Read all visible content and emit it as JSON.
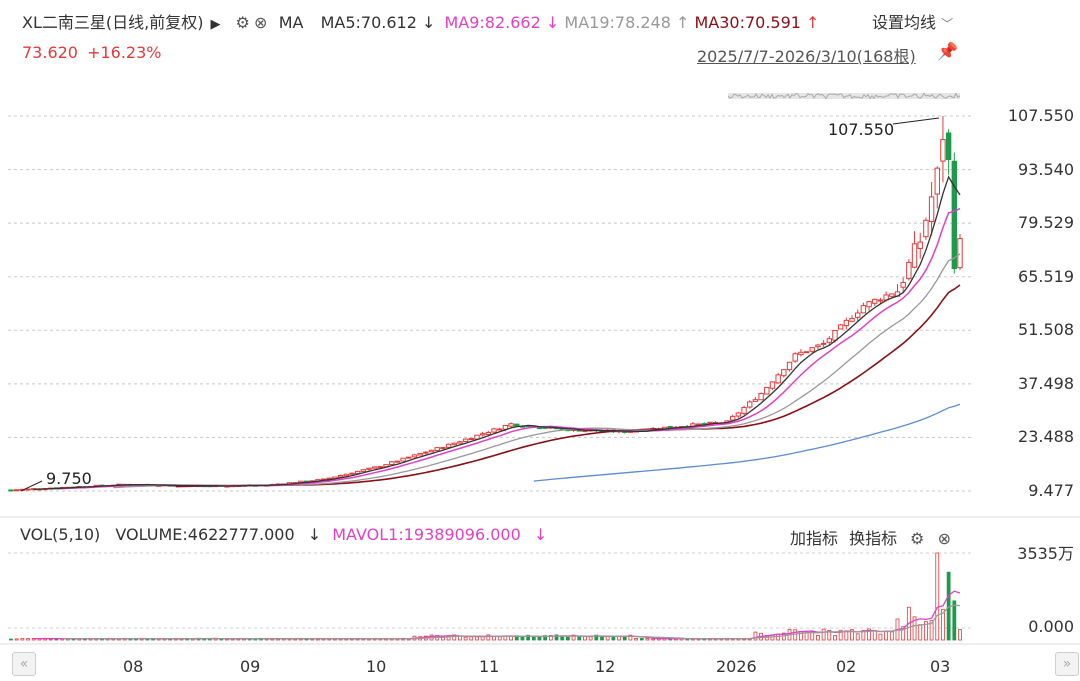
{
  "header": {
    "stock_name": "XL二南三星(日线,前复权)",
    "ma_toggle": "MA",
    "ma5": "MA5:70.612",
    "ma5_arrow": "↓",
    "ma9": "MA9:82.662",
    "ma9_arrow": "↓",
    "ma19": "MA19:78.248",
    "ma19_arrow": "↑",
    "ma30": "MA30:70.591",
    "ma30_arrow": "↑",
    "settings_label": "设置均线",
    "price": "73.620",
    "change": "+16.23%",
    "date_range": "2025/7/7-2026/3/10(168根)"
  },
  "volume_panel": {
    "vol_label": "VOL(5,10)",
    "volume": "VOLUME:4622777.000",
    "volume_arrow": "↓",
    "mavol1": "MAVOL1:19389096.000",
    "mavol1_arrow": "↓",
    "add_indicator": "加指标",
    "change_indicator": "换指标",
    "vol_max_label": "3535万",
    "vol_zero_label": "0.000"
  },
  "colors": {
    "up": "#e33a3a",
    "down": "#1f9a4a",
    "ma5": "#333333",
    "ma9": "#e040c8",
    "ma19": "#999999",
    "ma30": "#8b0f16",
    "ma_long": "#5b8bd6"
  },
  "chart_data": {
    "type": "candlestick",
    "y_ticks": [
      "107.550",
      "93.540",
      "79.529",
      "65.519",
      "51.508",
      "37.498",
      "23.488",
      "9.477"
    ],
    "y_range": [
      9.477,
      107.55
    ],
    "x_ticks": [
      "08",
      "09",
      "10",
      "11",
      "12",
      "2026",
      "02",
      "03"
    ],
    "annotations": [
      {
        "text": "107.550",
        "kind": "high"
      },
      {
        "text": "9.750",
        "kind": "low"
      }
    ],
    "approx_close_path": [
      {
        "t": "2025-07-07",
        "close": 9.75
      },
      {
        "t": "2025-08",
        "close": 11.5
      },
      {
        "t": "2025-09",
        "close": 11.0
      },
      {
        "t": "2025-10",
        "close": 17.5
      },
      {
        "t": "2025-11",
        "close": 26.5
      },
      {
        "t": "2025-12",
        "close": 25.5
      },
      {
        "t": "2026-01",
        "close": 45.0
      },
      {
        "t": "2026-02",
        "close": 62.0
      },
      {
        "t": "2026-03-05",
        "close": 100.0
      },
      {
        "t": "2026-03-10",
        "close": 73.62
      }
    ],
    "grid": true,
    "legend": "top-left"
  }
}
